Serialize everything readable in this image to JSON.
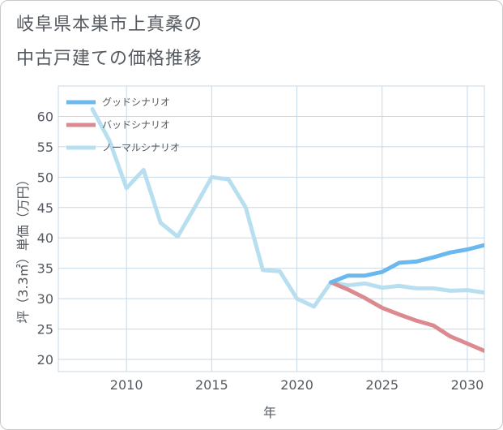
{
  "title_lines": [
    "岐阜県本巣市上真桑の",
    "中古戸建ての価格推移"
  ],
  "colors": {
    "good": "#6ab8ee",
    "bad": "#db8a90",
    "normal": "#b8dff0",
    "grid": "#c6d8e6",
    "axis_text": "#555a60"
  },
  "chart_data": {
    "type": "line",
    "title": "岐阜県本巣市上真桑の中古戸建ての価格推移",
    "xlabel": "年",
    "ylabel": "坪（3.3㎡）単価（万円）",
    "xlim": [
      2006,
      2031
    ],
    "ylim": [
      18,
      65
    ],
    "x_ticks": [
      2010,
      2015,
      2020,
      2025,
      2030
    ],
    "y_ticks": [
      20,
      25,
      30,
      35,
      40,
      45,
      50,
      55,
      60
    ],
    "legend_position": "top-left",
    "series": [
      {
        "name": "グッドシナリオ",
        "color": "#6ab8ee",
        "x": [
          2022,
          2023,
          2024,
          2025,
          2026,
          2027,
          2028,
          2029,
          2030,
          2031
        ],
        "values": [
          32.7,
          33.8,
          33.8,
          34.4,
          35.9,
          36.1,
          36.8,
          37.6,
          38.1,
          38.8
        ]
      },
      {
        "name": "バッドシナリオ",
        "color": "#db8a90",
        "x": [
          2022,
          2023,
          2024,
          2025,
          2026,
          2027,
          2028,
          2029,
          2030,
          2031
        ],
        "values": [
          32.7,
          31.5,
          30.1,
          28.5,
          27.4,
          26.4,
          25.6,
          23.8,
          22.6,
          21.4
        ]
      },
      {
        "name": "ノーマルシナリオ",
        "color": "#b8dff0",
        "x": [
          2008,
          2009,
          2010,
          2011,
          2012,
          2013,
          2014,
          2015,
          2016,
          2017,
          2018,
          2019,
          2020,
          2021,
          2022,
          2023,
          2024,
          2025,
          2026,
          2027,
          2028,
          2029,
          2030,
          2031
        ],
        "values": [
          61.2,
          56.0,
          48.2,
          51.2,
          42.5,
          40.2,
          45.0,
          50.0,
          49.6,
          45.0,
          34.7,
          34.5,
          30.0,
          28.7,
          32.7,
          32.2,
          32.5,
          31.8,
          32.1,
          31.7,
          31.7,
          31.3,
          31.4,
          31.0
        ]
      }
    ]
  }
}
